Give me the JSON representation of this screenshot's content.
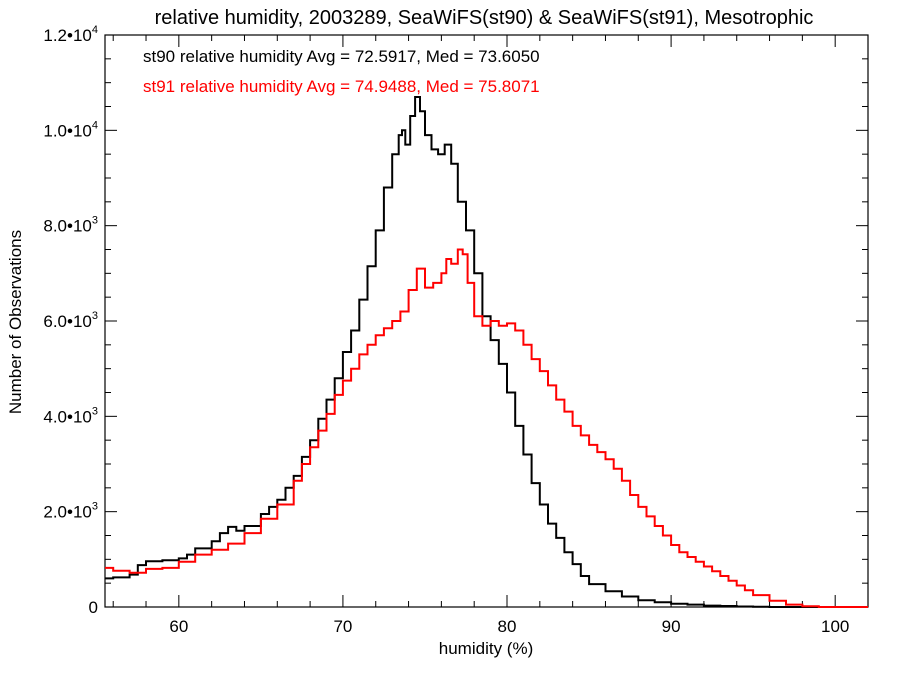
{
  "chart_data": {
    "type": "line",
    "title": "relative humidity, 2003289, SeaWiFS(st90) & SeaWiFS(st91), Mesotrophic",
    "xlabel": "humidity (%)",
    "ylabel": "Number of Observations",
    "xlim": [
      55.5,
      102
    ],
    "ylim": [
      0,
      12000
    ],
    "x_ticks": [
      60,
      70,
      80,
      90,
      100
    ],
    "x_tick_labels": [
      "60",
      "70",
      "80",
      "90",
      "100"
    ],
    "y_ticks": [
      0,
      2000,
      4000,
      6000,
      8000,
      10000,
      12000
    ],
    "y_tick_labels": [
      {
        "mantissa": "0",
        "exponent": ""
      },
      {
        "mantissa": "2.0•10",
        "exponent": "3"
      },
      {
        "mantissa": "4.0•10",
        "exponent": "3"
      },
      {
        "mantissa": "6.0•10",
        "exponent": "3"
      },
      {
        "mantissa": "8.0•10",
        "exponent": "3"
      },
      {
        "mantissa": "1.0•10",
        "exponent": "4"
      },
      {
        "mantissa": "1.2•10",
        "exponent": "4"
      }
    ],
    "grid": false,
    "legend_placement": "top-left",
    "step": true,
    "series": [
      {
        "name": "st90",
        "color": "#000000",
        "label": "st90 relative humidity Avg = 72.5917, Med = 73.6050",
        "points": [
          [
            55.5,
            600
          ],
          [
            56,
            620
          ],
          [
            57,
            680
          ],
          [
            57.5,
            880
          ],
          [
            58,
            960
          ],
          [
            59,
            980
          ],
          [
            60,
            1020
          ],
          [
            60.5,
            1100
          ],
          [
            61,
            1230
          ],
          [
            62,
            1380
          ],
          [
            62.5,
            1550
          ],
          [
            63,
            1680
          ],
          [
            63.5,
            1600
          ],
          [
            64,
            1700
          ],
          [
            65,
            1950
          ],
          [
            65.5,
            2100
          ],
          [
            66,
            2250
          ],
          [
            66.5,
            2500
          ],
          [
            67,
            2750
          ],
          [
            67.5,
            3150
          ],
          [
            68,
            3500
          ],
          [
            68.5,
            3950
          ],
          [
            69,
            4350
          ],
          [
            69.5,
            4800
          ],
          [
            70,
            5350
          ],
          [
            70.5,
            5800
          ],
          [
            71,
            6450
          ],
          [
            71.5,
            7150
          ],
          [
            72,
            7900
          ],
          [
            72.5,
            8800
          ],
          [
            73,
            9500
          ],
          [
            73.4,
            9900
          ],
          [
            73.6,
            10000
          ],
          [
            73.8,
            9700
          ],
          [
            74.1,
            10300
          ],
          [
            74.4,
            10700
          ],
          [
            74.7,
            10400
          ],
          [
            75,
            9900
          ],
          [
            75.4,
            9600
          ],
          [
            75.8,
            9500
          ],
          [
            76.2,
            9700
          ],
          [
            76.6,
            9300
          ],
          [
            77,
            8500
          ],
          [
            77.5,
            7900
          ],
          [
            78,
            7000
          ],
          [
            78.5,
            6100
          ],
          [
            79,
            5600
          ],
          [
            79.5,
            5100
          ],
          [
            80,
            4500
          ],
          [
            80.5,
            3800
          ],
          [
            81,
            3200
          ],
          [
            81.5,
            2600
          ],
          [
            82,
            2150
          ],
          [
            82.5,
            1750
          ],
          [
            83,
            1450
          ],
          [
            83.5,
            1150
          ],
          [
            84,
            900
          ],
          [
            84.5,
            650
          ],
          [
            85,
            480
          ],
          [
            86,
            330
          ],
          [
            87,
            220
          ],
          [
            88,
            140
          ],
          [
            89,
            100
          ],
          [
            90,
            70
          ],
          [
            91,
            50
          ],
          [
            92,
            30
          ],
          [
            93,
            20
          ],
          [
            94,
            10
          ],
          [
            95,
            5
          ],
          [
            96,
            0
          ],
          [
            102,
            0
          ]
        ]
      },
      {
        "name": "st91",
        "color": "#ff0000",
        "label": "st91 relative humidity Avg = 74.9488, Med = 75.8071",
        "points": [
          [
            55.5,
            820
          ],
          [
            56,
            760
          ],
          [
            57,
            720
          ],
          [
            58,
            800
          ],
          [
            59,
            820
          ],
          [
            60,
            950
          ],
          [
            61,
            1100
          ],
          [
            62,
            1200
          ],
          [
            63,
            1330
          ],
          [
            64,
            1550
          ],
          [
            65,
            1850
          ],
          [
            66,
            2150
          ],
          [
            67,
            2650
          ],
          [
            67.5,
            3000
          ],
          [
            68,
            3350
          ],
          [
            68.5,
            3700
          ],
          [
            69,
            4050
          ],
          [
            69.5,
            4450
          ],
          [
            70,
            4750
          ],
          [
            70.5,
            5000
          ],
          [
            71,
            5300
          ],
          [
            71.5,
            5500
          ],
          [
            72,
            5700
          ],
          [
            72.5,
            5850
          ],
          [
            73,
            6000
          ],
          [
            73.5,
            6200
          ],
          [
            74,
            6650
          ],
          [
            74.5,
            7100
          ],
          [
            75,
            6700
          ],
          [
            75.5,
            6800
          ],
          [
            76,
            7000
          ],
          [
            76.3,
            7300
          ],
          [
            76.6,
            7200
          ],
          [
            77,
            7500
          ],
          [
            77.3,
            7400
          ],
          [
            77.6,
            6800
          ],
          [
            78,
            6100
          ],
          [
            78.5,
            5900
          ],
          [
            79,
            6000
          ],
          [
            79.5,
            5900
          ],
          [
            80,
            5950
          ],
          [
            80.5,
            5800
          ],
          [
            81,
            5500
          ],
          [
            81.5,
            5200
          ],
          [
            82,
            4950
          ],
          [
            82.5,
            4650
          ],
          [
            83,
            4350
          ],
          [
            83.5,
            4100
          ],
          [
            84,
            3800
          ],
          [
            84.5,
            3600
          ],
          [
            85,
            3400
          ],
          [
            85.5,
            3250
          ],
          [
            86,
            3100
          ],
          [
            86.5,
            2900
          ],
          [
            87,
            2650
          ],
          [
            87.5,
            2350
          ],
          [
            88,
            2100
          ],
          [
            88.5,
            1900
          ],
          [
            89,
            1700
          ],
          [
            89.5,
            1500
          ],
          [
            90,
            1300
          ],
          [
            90.5,
            1150
          ],
          [
            91,
            1050
          ],
          [
            91.5,
            950
          ],
          [
            92,
            850
          ],
          [
            92.5,
            750
          ],
          [
            93,
            650
          ],
          [
            93.5,
            550
          ],
          [
            94,
            450
          ],
          [
            94.5,
            350
          ],
          [
            95,
            250
          ],
          [
            96,
            130
          ],
          [
            97,
            50
          ],
          [
            98,
            15
          ],
          [
            99,
            0
          ],
          [
            102,
            0
          ]
        ]
      }
    ]
  }
}
